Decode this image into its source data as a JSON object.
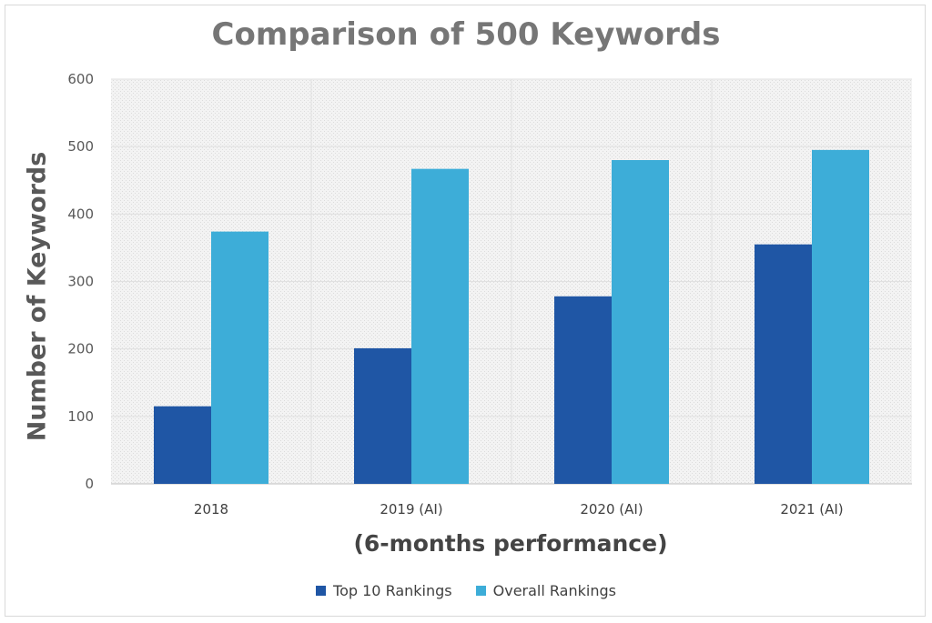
{
  "chart_data": {
    "type": "bar",
    "title": "Comparison of 500 Keywords",
    "xlabel": "(6-months performance)",
    "ylabel": "Number of Keywords",
    "categories": [
      "2018",
      "2019 (AI)",
      "2020 (AI)",
      "2021 (AI)"
    ],
    "series": [
      {
        "name": "Top 10 Rankings",
        "values": [
          115,
          201,
          278,
          355
        ],
        "color": "#1f56a5"
      },
      {
        "name": "Overall Rankings",
        "values": [
          374,
          467,
          480,
          495
        ],
        "color": "#3dadd8"
      }
    ],
    "ylim": [
      0,
      600
    ],
    "yticks": [
      0,
      100,
      200,
      300,
      400,
      500,
      600
    ],
    "grid": true,
    "legend": "bottom"
  }
}
